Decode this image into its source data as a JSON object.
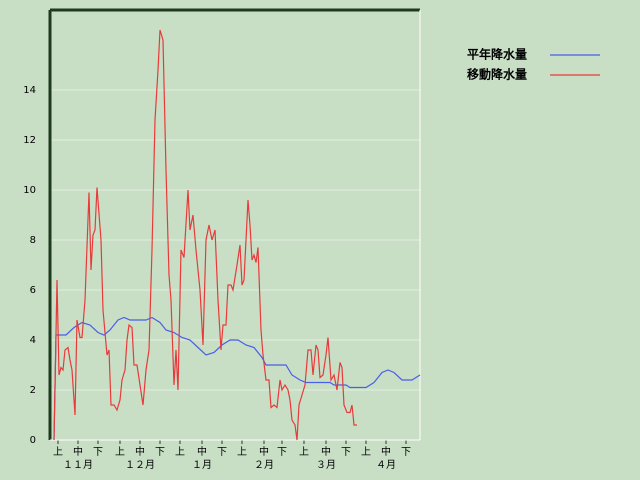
{
  "chart_data": {
    "type": "line",
    "xlim": [
      0,
      185
    ],
    "ylim": [
      0,
      17.2
    ],
    "yticks": [
      0,
      2,
      4,
      6,
      8,
      10,
      12,
      14
    ],
    "xticks": [
      {
        "value": 4,
        "label": "上"
      },
      {
        "value": 14,
        "label": "中"
      },
      {
        "value": 24,
        "label": "下"
      },
      {
        "value": 35,
        "label": "上"
      },
      {
        "value": 45,
        "label": "中"
      },
      {
        "value": 55,
        "label": "下"
      },
      {
        "value": 65,
        "label": "上"
      },
      {
        "value": 76,
        "label": "中"
      },
      {
        "value": 86,
        "label": "下"
      },
      {
        "value": 96,
        "label": "上"
      },
      {
        "value": 107,
        "label": "中"
      },
      {
        "value": 116,
        "label": "下"
      },
      {
        "value": 127,
        "label": "上"
      },
      {
        "value": 138,
        "label": "中"
      },
      {
        "value": 148,
        "label": "下"
      },
      {
        "value": 158,
        "label": "上"
      },
      {
        "value": 168,
        "label": "中"
      },
      {
        "value": 178,
        "label": "下"
      }
    ],
    "months": [
      "１１月",
      "１２月",
      "１月",
      "２月",
      "３月",
      "４月"
    ],
    "grid": true,
    "series": [
      {
        "name": "平年降水量",
        "color": "#4a5ee8",
        "x": [
          2,
          3,
          8,
          12,
          16,
          20,
          24,
          27,
          30,
          34,
          37,
          40,
          48,
          51,
          55,
          58,
          62,
          66,
          70,
          74,
          78,
          82,
          86,
          90,
          94,
          98,
          102,
          106,
          108,
          118,
          121,
          125,
          128,
          140,
          142,
          148,
          150,
          158,
          162,
          166,
          169,
          172,
          176,
          181,
          185
        ],
        "values": [
          0,
          4.2,
          4.2,
          4.5,
          4.7,
          4.6,
          4.3,
          4.2,
          4.4,
          4.8,
          4.9,
          4.8,
          4.8,
          4.9,
          4.7,
          4.4,
          4.3,
          4.1,
          4.0,
          3.7,
          3.4,
          3.5,
          3.8,
          4.0,
          4.0,
          3.8,
          3.7,
          3.3,
          3.0,
          3.0,
          2.6,
          2.4,
          2.3,
          2.3,
          2.2,
          2.2,
          2.1,
          2.1,
          2.3,
          2.7,
          2.8,
          2.7,
          2.4,
          2.4,
          2.6
        ]
      },
      {
        "name": "移動降水量",
        "color": "#e83a3a",
        "x": [
          2,
          3.5,
          4.5,
          5.5,
          6.5,
          7.5,
          9,
          10,
          11,
          12.5,
          13.5,
          15,
          16,
          17.5,
          19.5,
          20.5,
          21.5,
          22.5,
          23.5,
          25.5,
          26.5,
          28.5,
          29.5,
          30.5,
          32,
          33.5,
          35,
          36,
          37.5,
          38.5,
          39.5,
          41,
          42,
          43.5,
          45,
          46.5,
          48,
          49.5,
          51,
          52.5,
          54,
          55,
          56.5,
          58,
          59.5,
          60.5,
          62,
          63,
          64,
          65.5,
          67,
          69,
          70,
          71.5,
          73,
          75,
          76.5,
          78,
          79.5,
          81,
          82.5,
          84,
          85.5,
          86.5,
          88,
          89,
          90.5,
          91.5,
          93.5,
          95,
          96,
          97,
          98,
          99,
          100,
          101,
          102,
          103,
          104,
          105.5,
          106.5,
          108,
          109.5,
          110.5,
          112,
          113.5,
          115,
          116,
          117.5,
          119,
          120,
          121,
          122.5,
          123.5,
          124.5,
          126,
          127.5,
          129,
          130.5,
          131.5,
          133,
          134,
          135,
          136.5,
          138,
          139,
          140.5,
          142,
          143.5,
          145,
          146,
          147,
          148.5,
          150,
          151,
          152,
          153.5
        ],
        "values": [
          0,
          6.4,
          2.6,
          2.9,
          2.8,
          3.6,
          3.7,
          3.2,
          2.8,
          1.0,
          4.8,
          4.1,
          4.1,
          5.6,
          9.9,
          6.8,
          8.2,
          8.4,
          10.1,
          8.0,
          5.2,
          3.4,
          3.6,
          1.4,
          1.4,
          1.2,
          1.6,
          2.4,
          2.8,
          4.0,
          4.6,
          4.5,
          3.0,
          3.0,
          2.2,
          1.4,
          2.8,
          3.6,
          7.6,
          12.8,
          14.8,
          16.4,
          16.0,
          10.8,
          6.6,
          5.6,
          2.2,
          3.6,
          2.0,
          7.6,
          7.3,
          10.0,
          8.4,
          9.0,
          7.6,
          6.0,
          3.8,
          8.0,
          8.6,
          8.0,
          8.4,
          5.6,
          3.6,
          4.6,
          4.6,
          6.2,
          6.2,
          6.0,
          7.0,
          7.8,
          6.2,
          6.4,
          8.0,
          9.6,
          8.6,
          7.2,
          7.4,
          7.1,
          7.7,
          4.4,
          3.4,
          2.4,
          2.4,
          1.3,
          1.4,
          1.3,
          2.4,
          2.0,
          2.2,
          2.0,
          1.6,
          0.8,
          0.6,
          0,
          1.4,
          1.8,
          2.2,
          3.6,
          3.6,
          2.6,
          3.8,
          3.6,
          2.5,
          2.6,
          3.4,
          4.1,
          2.4,
          2.6,
          2.0,
          3.1,
          2.9,
          1.4,
          1.1,
          1.1,
          1.4,
          0.6,
          0.6
        ]
      }
    ]
  }
}
